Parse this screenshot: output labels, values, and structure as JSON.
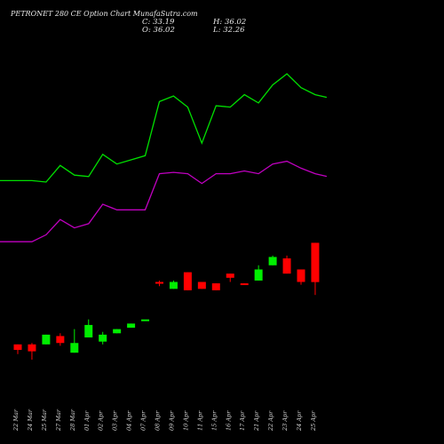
{
  "header": {
    "title": "PETRONET 280  CE Option  Chart MunafaSutra.com",
    "close_label": "C: 33.19",
    "open_label": "O: 36.02",
    "high_label": "H: 36.02",
    "low_label": "L: 32.26"
  },
  "chart_data": {
    "type": "candlestick",
    "title": "PETRONET 280  CE Option  Chart MunafaSutra.com",
    "categories": [
      "22 Mar",
      "24 Mar",
      "25 Mar",
      "27 Mar",
      "28 Mar",
      "01 Apr",
      "02 Apr",
      "03 Apr",
      "04 Apr",
      "07 Apr",
      "08 Apr",
      "09 Apr",
      "10 Apr",
      "11 Apr",
      "15 Apr",
      "16 Apr",
      "17 Apr",
      "21 Apr",
      "22 Apr",
      "23 Apr",
      "24 Apr",
      "25 Apr"
    ],
    "candles": [
      {
        "date": "22 Mar",
        "open": 28.7,
        "high": 28.7,
        "low": 28.0,
        "close": 28.3
      },
      {
        "date": "24 Mar",
        "open": 28.7,
        "high": 28.8,
        "low": 27.6,
        "close": 28.2
      },
      {
        "date": "25 Mar",
        "open": 28.7,
        "high": 29.4,
        "low": 28.7,
        "close": 29.4
      },
      {
        "date": "27 Mar",
        "open": 29.3,
        "high": 29.5,
        "low": 28.6,
        "close": 28.8
      },
      {
        "date": "28 Mar",
        "open": 28.1,
        "high": 29.8,
        "low": 28.1,
        "close": 28.8
      },
      {
        "date": "01 Apr",
        "open": 29.2,
        "high": 30.5,
        "low": 29.2,
        "close": 30.1
      },
      {
        "date": "02 Apr",
        "open": 28.9,
        "high": 29.6,
        "low": 28.7,
        "close": 29.4
      },
      {
        "date": "03 Apr",
        "open": 29.5,
        "high": 29.8,
        "low": 29.5,
        "close": 29.8
      },
      {
        "date": "04 Apr",
        "open": 29.9,
        "high": 30.2,
        "low": 29.9,
        "close": 30.2
      },
      {
        "date": "07 Apr",
        "open": 30.5,
        "high": 30.5,
        "low": 30.5,
        "close": 30.5
      },
      {
        "date": "08 Apr",
        "open": 33.2,
        "high": 33.3,
        "low": 32.9,
        "close": 33.1
      },
      {
        "date": "09 Apr",
        "open": 32.7,
        "high": 33.3,
        "low": 32.7,
        "close": 33.2
      },
      {
        "date": "10 Apr",
        "open": 33.9,
        "high": 33.9,
        "low": 32.6,
        "close": 32.6
      },
      {
        "date": "11 Apr",
        "open": 33.2,
        "high": 33.2,
        "low": 32.7,
        "close": 32.7
      },
      {
        "date": "15 Apr",
        "open": 33.1,
        "high": 33.1,
        "low": 32.6,
        "close": 32.6
      },
      {
        "date": "16 Apr",
        "open": 33.8,
        "high": 33.8,
        "low": 33.2,
        "close": 33.5
      },
      {
        "date": "17 Apr",
        "open": 33.1,
        "high": 33.1,
        "low": 33.0,
        "close": 33.0
      },
      {
        "date": "21 Apr",
        "open": 33.3,
        "high": 34.4,
        "low": 33.3,
        "close": 34.1
      },
      {
        "date": "22 Apr",
        "open": 34.4,
        "high": 35.1,
        "low": 34.4,
        "close": 35.0
      },
      {
        "date": "23 Apr",
        "open": 34.9,
        "high": 35.1,
        "low": 33.8,
        "close": 33.8
      },
      {
        "date": "24 Apr",
        "open": 34.1,
        "high": 34.1,
        "low": 33.0,
        "close": 33.2
      },
      {
        "date": "25 Apr",
        "open": 36.02,
        "high": 36.02,
        "low": 32.26,
        "close": 33.19
      }
    ],
    "series": [
      {
        "values": [
          40.5,
          40.5,
          40.4,
          41.6,
          40.9,
          40.8,
          42.4,
          41.7,
          42.0,
          42.3,
          46.2,
          46.6,
          45.8,
          43.2,
          45.9,
          45.8,
          46.7,
          46.1,
          47.4,
          48.2,
          47.2,
          46.7
        ]
      },
      {
        "values": [
          36.1,
          36.1,
          36.6,
          37.7,
          37.1,
          37.4,
          38.8,
          38.4,
          38.4,
          38.4,
          41.0,
          41.1,
          41.0,
          40.3,
          41.0,
          41.0,
          41.2,
          41.0,
          41.7,
          41.9,
          41.4,
          41.0
        ]
      }
    ],
    "colors": {
      "up": "#00ee00",
      "down": "#ff0000",
      "line1": "#00e000",
      "line2": "#c000c0"
    },
    "ylim": [
      26,
      50
    ],
    "grid": false
  }
}
